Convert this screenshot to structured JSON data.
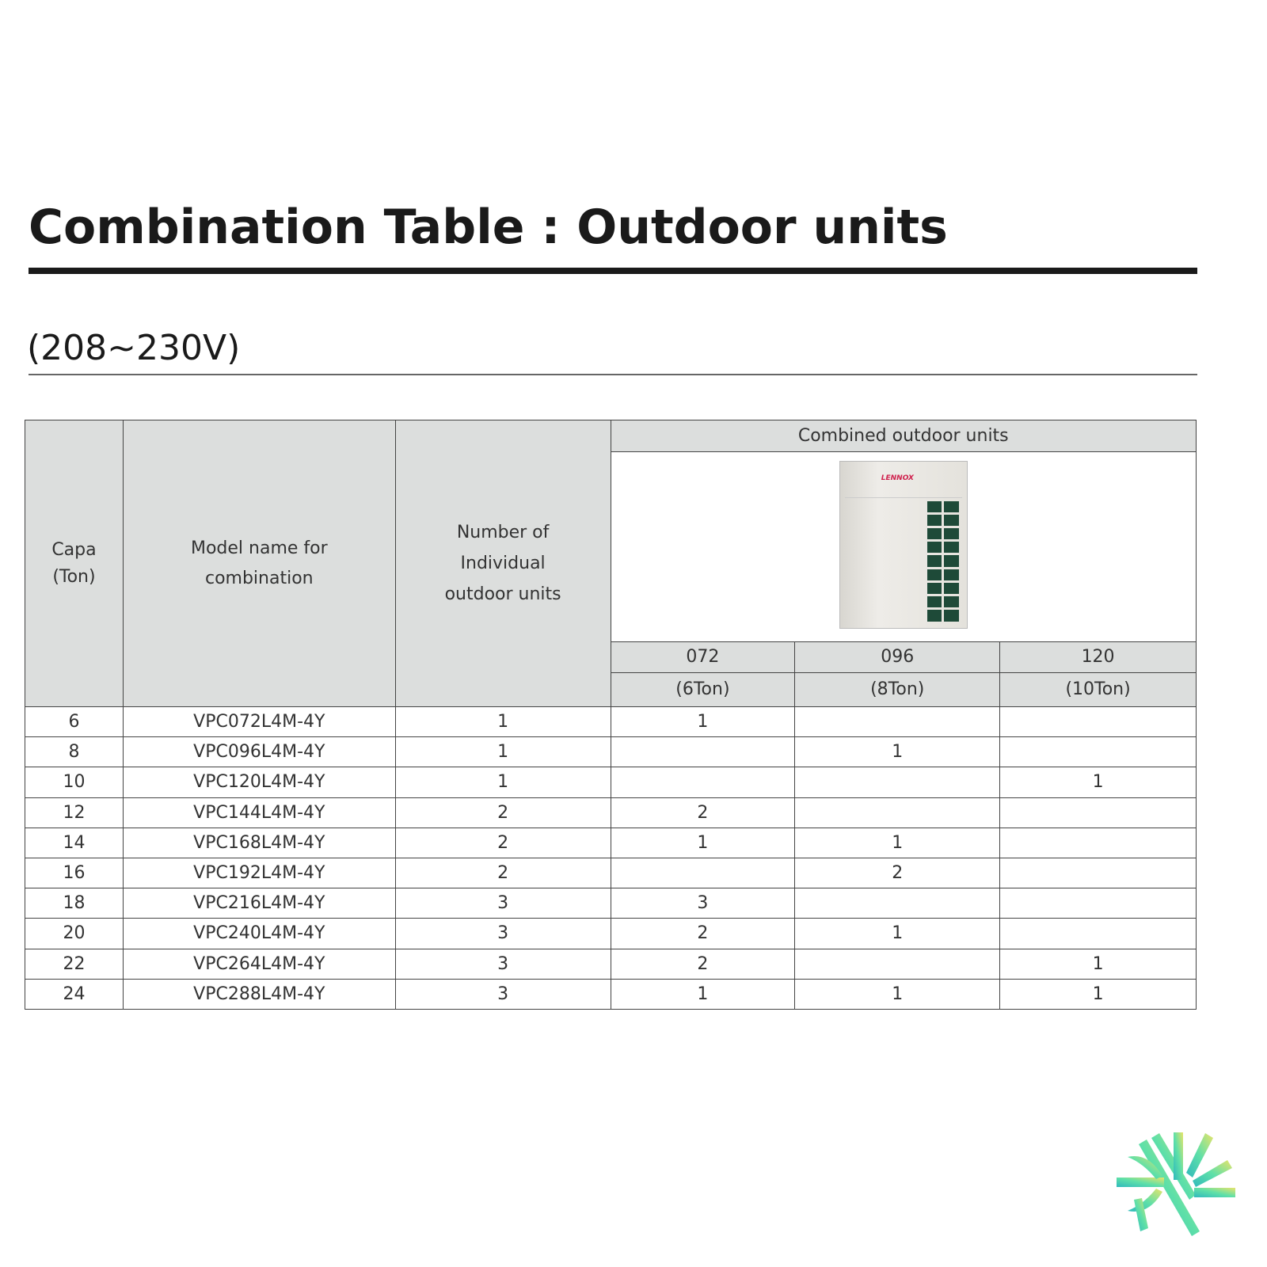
{
  "title": "Combination Table : Outdoor units",
  "subtitle": "(208~230V)",
  "table": {
    "headers": {
      "capa": [
        "Capa",
        "(Ton)"
      ],
      "model": [
        "Model name for",
        "combination"
      ],
      "number": [
        "Number of",
        "Individual",
        "outdoor units"
      ],
      "combined": "Combined outdoor units"
    },
    "unit_image": {
      "brand": "LENNOX"
    },
    "sub_columns": [
      {
        "code": "072",
        "ton": "(6Ton)"
      },
      {
        "code": "096",
        "ton": "(8Ton)"
      },
      {
        "code": "120",
        "ton": "(10Ton)"
      }
    ],
    "rows": [
      {
        "capa": "6",
        "model": "VPC072L4M-4Y",
        "num": "1",
        "u072": "1",
        "u096": "",
        "u120": ""
      },
      {
        "capa": "8",
        "model": "VPC096L4M-4Y",
        "num": "1",
        "u072": "",
        "u096": "1",
        "u120": ""
      },
      {
        "capa": "10",
        "model": "VPC120L4M-4Y",
        "num": "1",
        "u072": "",
        "u096": "",
        "u120": "1"
      },
      {
        "capa": "12",
        "model": "VPC144L4M-4Y",
        "num": "2",
        "u072": "2",
        "u096": "",
        "u120": ""
      },
      {
        "capa": "14",
        "model": "VPC168L4M-4Y",
        "num": "2",
        "u072": "1",
        "u096": "1",
        "u120": ""
      },
      {
        "capa": "16",
        "model": "VPC192L4M-4Y",
        "num": "2",
        "u072": "",
        "u096": "2",
        "u120": ""
      },
      {
        "capa": "18",
        "model": "VPC216L4M-4Y",
        "num": "3",
        "u072": "3",
        "u096": "",
        "u120": ""
      },
      {
        "capa": "20",
        "model": "VPC240L4M-4Y",
        "num": "3",
        "u072": "2",
        "u096": "1",
        "u120": ""
      },
      {
        "capa": "22",
        "model": "VPC264L4M-4Y",
        "num": "3",
        "u072": "2",
        "u096": "",
        "u120": "1"
      },
      {
        "capa": "24",
        "model": "VPC288L4M-4Y",
        "num": "3",
        "u072": "1",
        "u096": "1",
        "u120": "1"
      }
    ]
  },
  "colors": {
    "header_bg": "#dcdedd",
    "logo_teal": "#36c2b4",
    "logo_yellow": "#e6e36a"
  }
}
